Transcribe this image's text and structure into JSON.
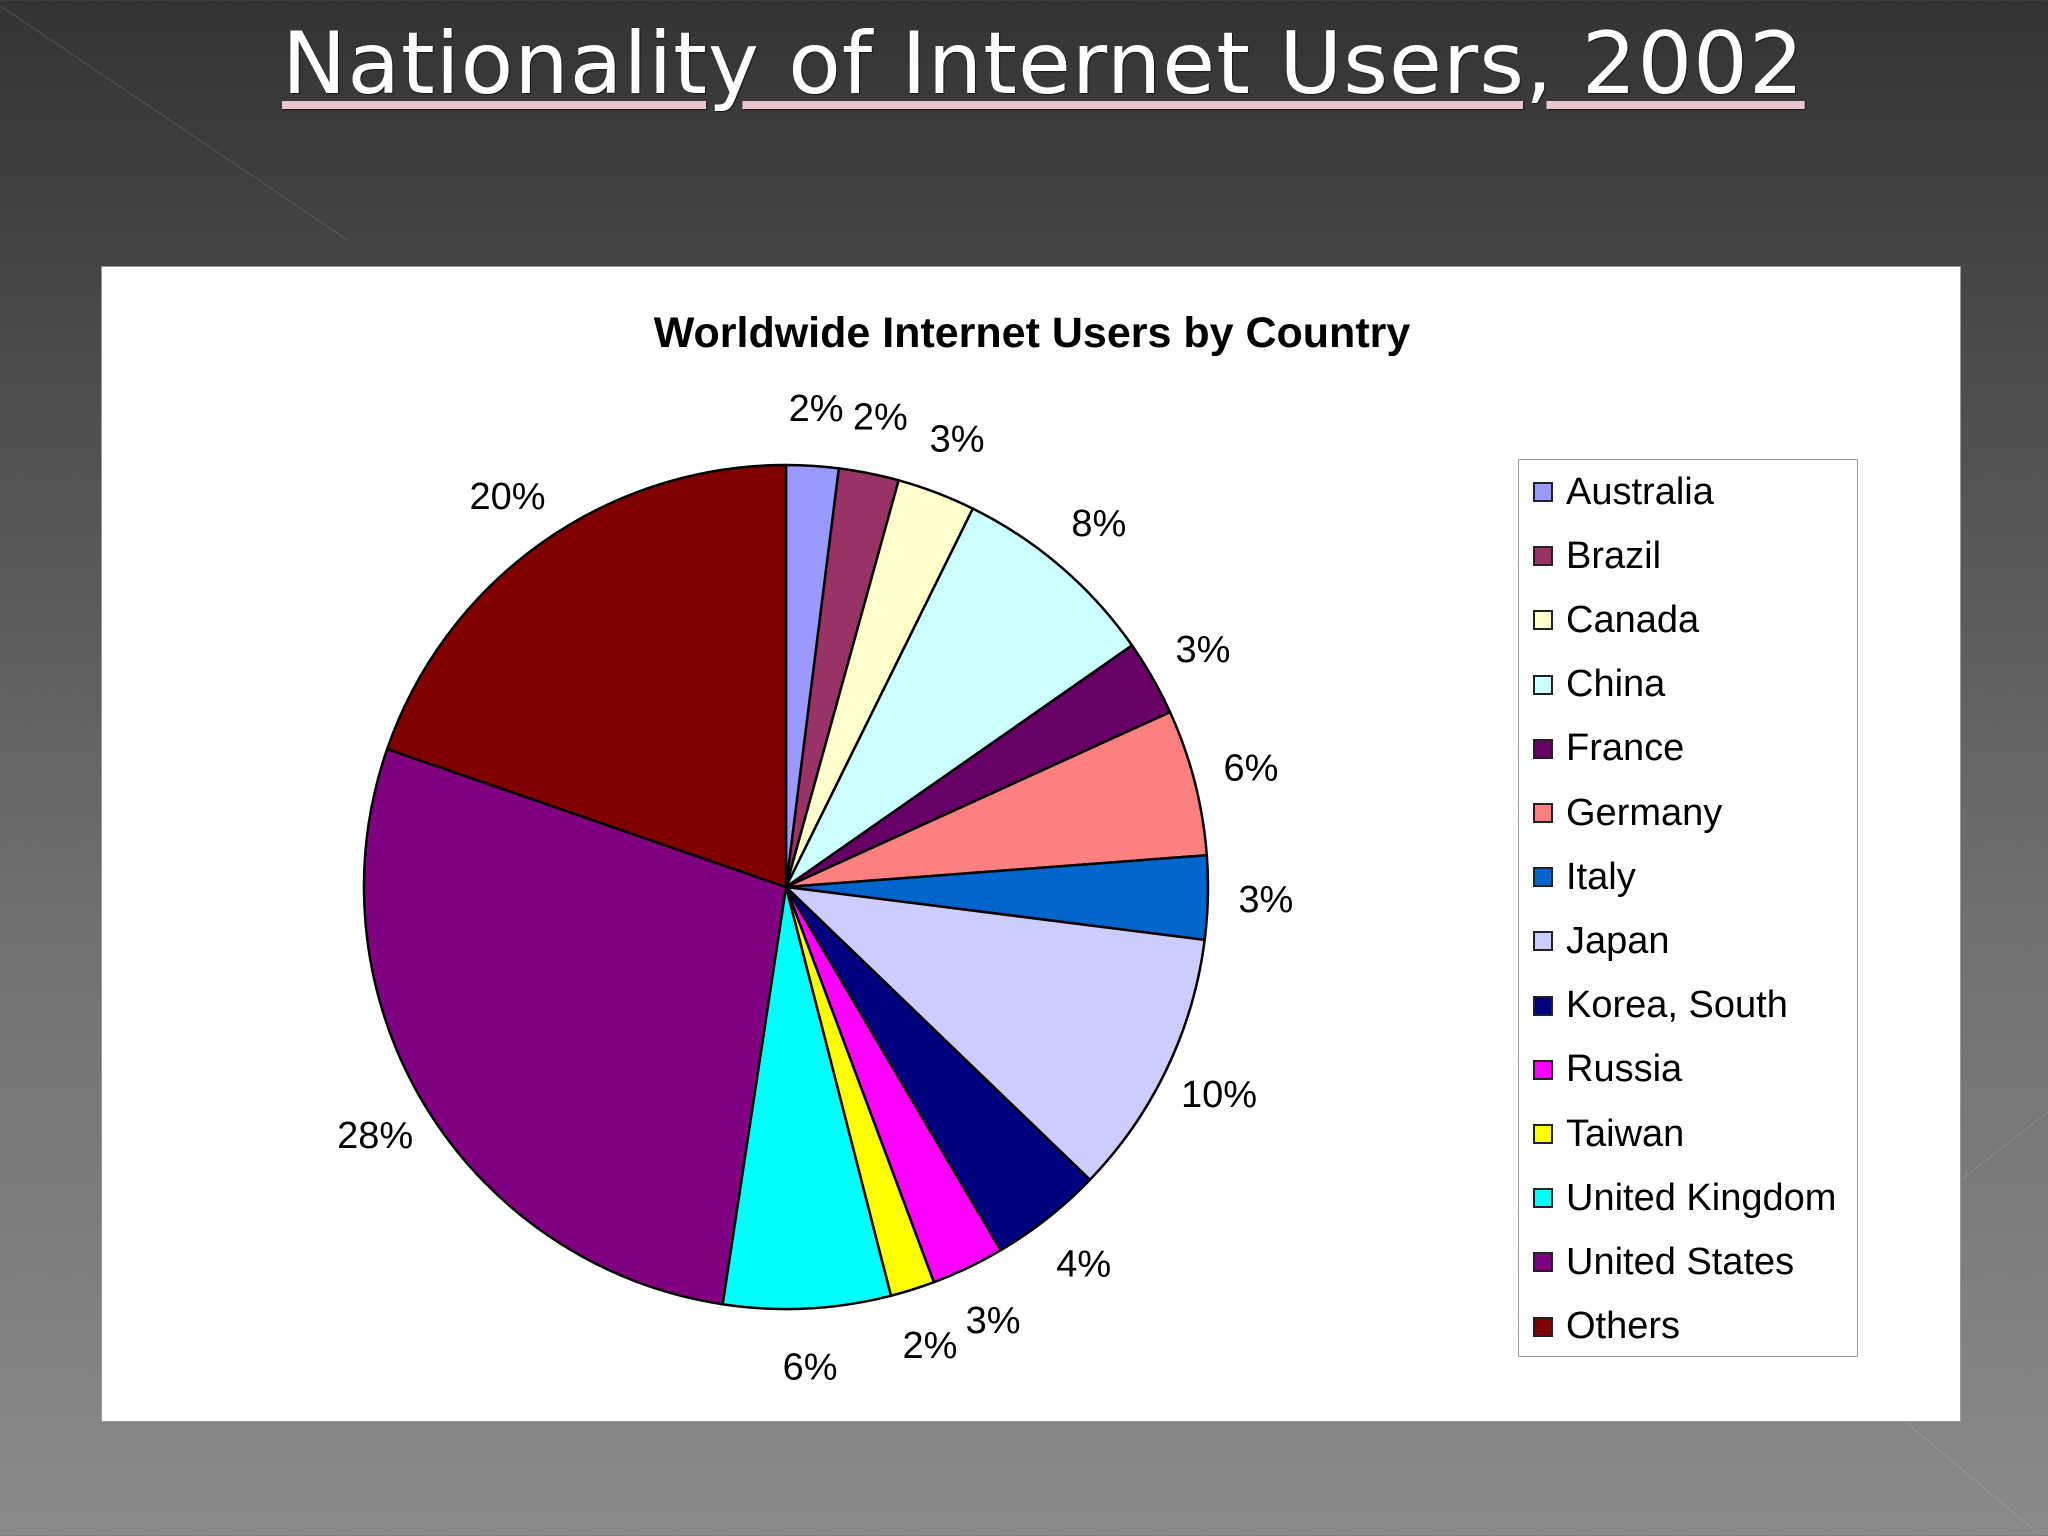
{
  "slide": {
    "title": "Nationality of Internet Users, 2002"
  },
  "chart_data": {
    "type": "pie",
    "title": "Worldwide Internet Users by Country",
    "legend_position": "right",
    "start_angle_deg": 0,
    "direction": "clockwise",
    "slices": [
      {
        "name": "Australia",
        "value": 2.0,
        "label": "2%",
        "color": "#9999ff"
      },
      {
        "name": "Brazil",
        "value": 2.3,
        "label": "2%",
        "color": "#993366"
      },
      {
        "name": "Canada",
        "value": 3.0,
        "label": "3%",
        "color": "#ffffcc"
      },
      {
        "name": "China",
        "value": 8.0,
        "label": "8%",
        "color": "#ccffff"
      },
      {
        "name": "France",
        "value": 2.9,
        "label": "3%",
        "color": "#660066"
      },
      {
        "name": "Germany",
        "value": 5.6,
        "label": "6%",
        "color": "#ff8080"
      },
      {
        "name": "Italy",
        "value": 3.2,
        "label": "3%",
        "color": "#0066cc"
      },
      {
        "name": "Japan",
        "value": 10.2,
        "label": "10%",
        "color": "#ccccff"
      },
      {
        "name": "Korea, South",
        "value": 4.3,
        "label": "4%",
        "color": "#000080"
      },
      {
        "name": "Russia",
        "value": 2.8,
        "label": "3%",
        "color": "#ff00ff"
      },
      {
        "name": "Taiwan",
        "value": 1.7,
        "label": "2%",
        "color": "#ffff00"
      },
      {
        "name": "United Kingdom",
        "value": 6.4,
        "label": "6%",
        "color": "#00ffff"
      },
      {
        "name": "United States",
        "value": 27.9,
        "label": "28%",
        "color": "#800080"
      },
      {
        "name": "Others",
        "value": 19.7,
        "label": "20%",
        "color": "#800000"
      }
    ]
  }
}
